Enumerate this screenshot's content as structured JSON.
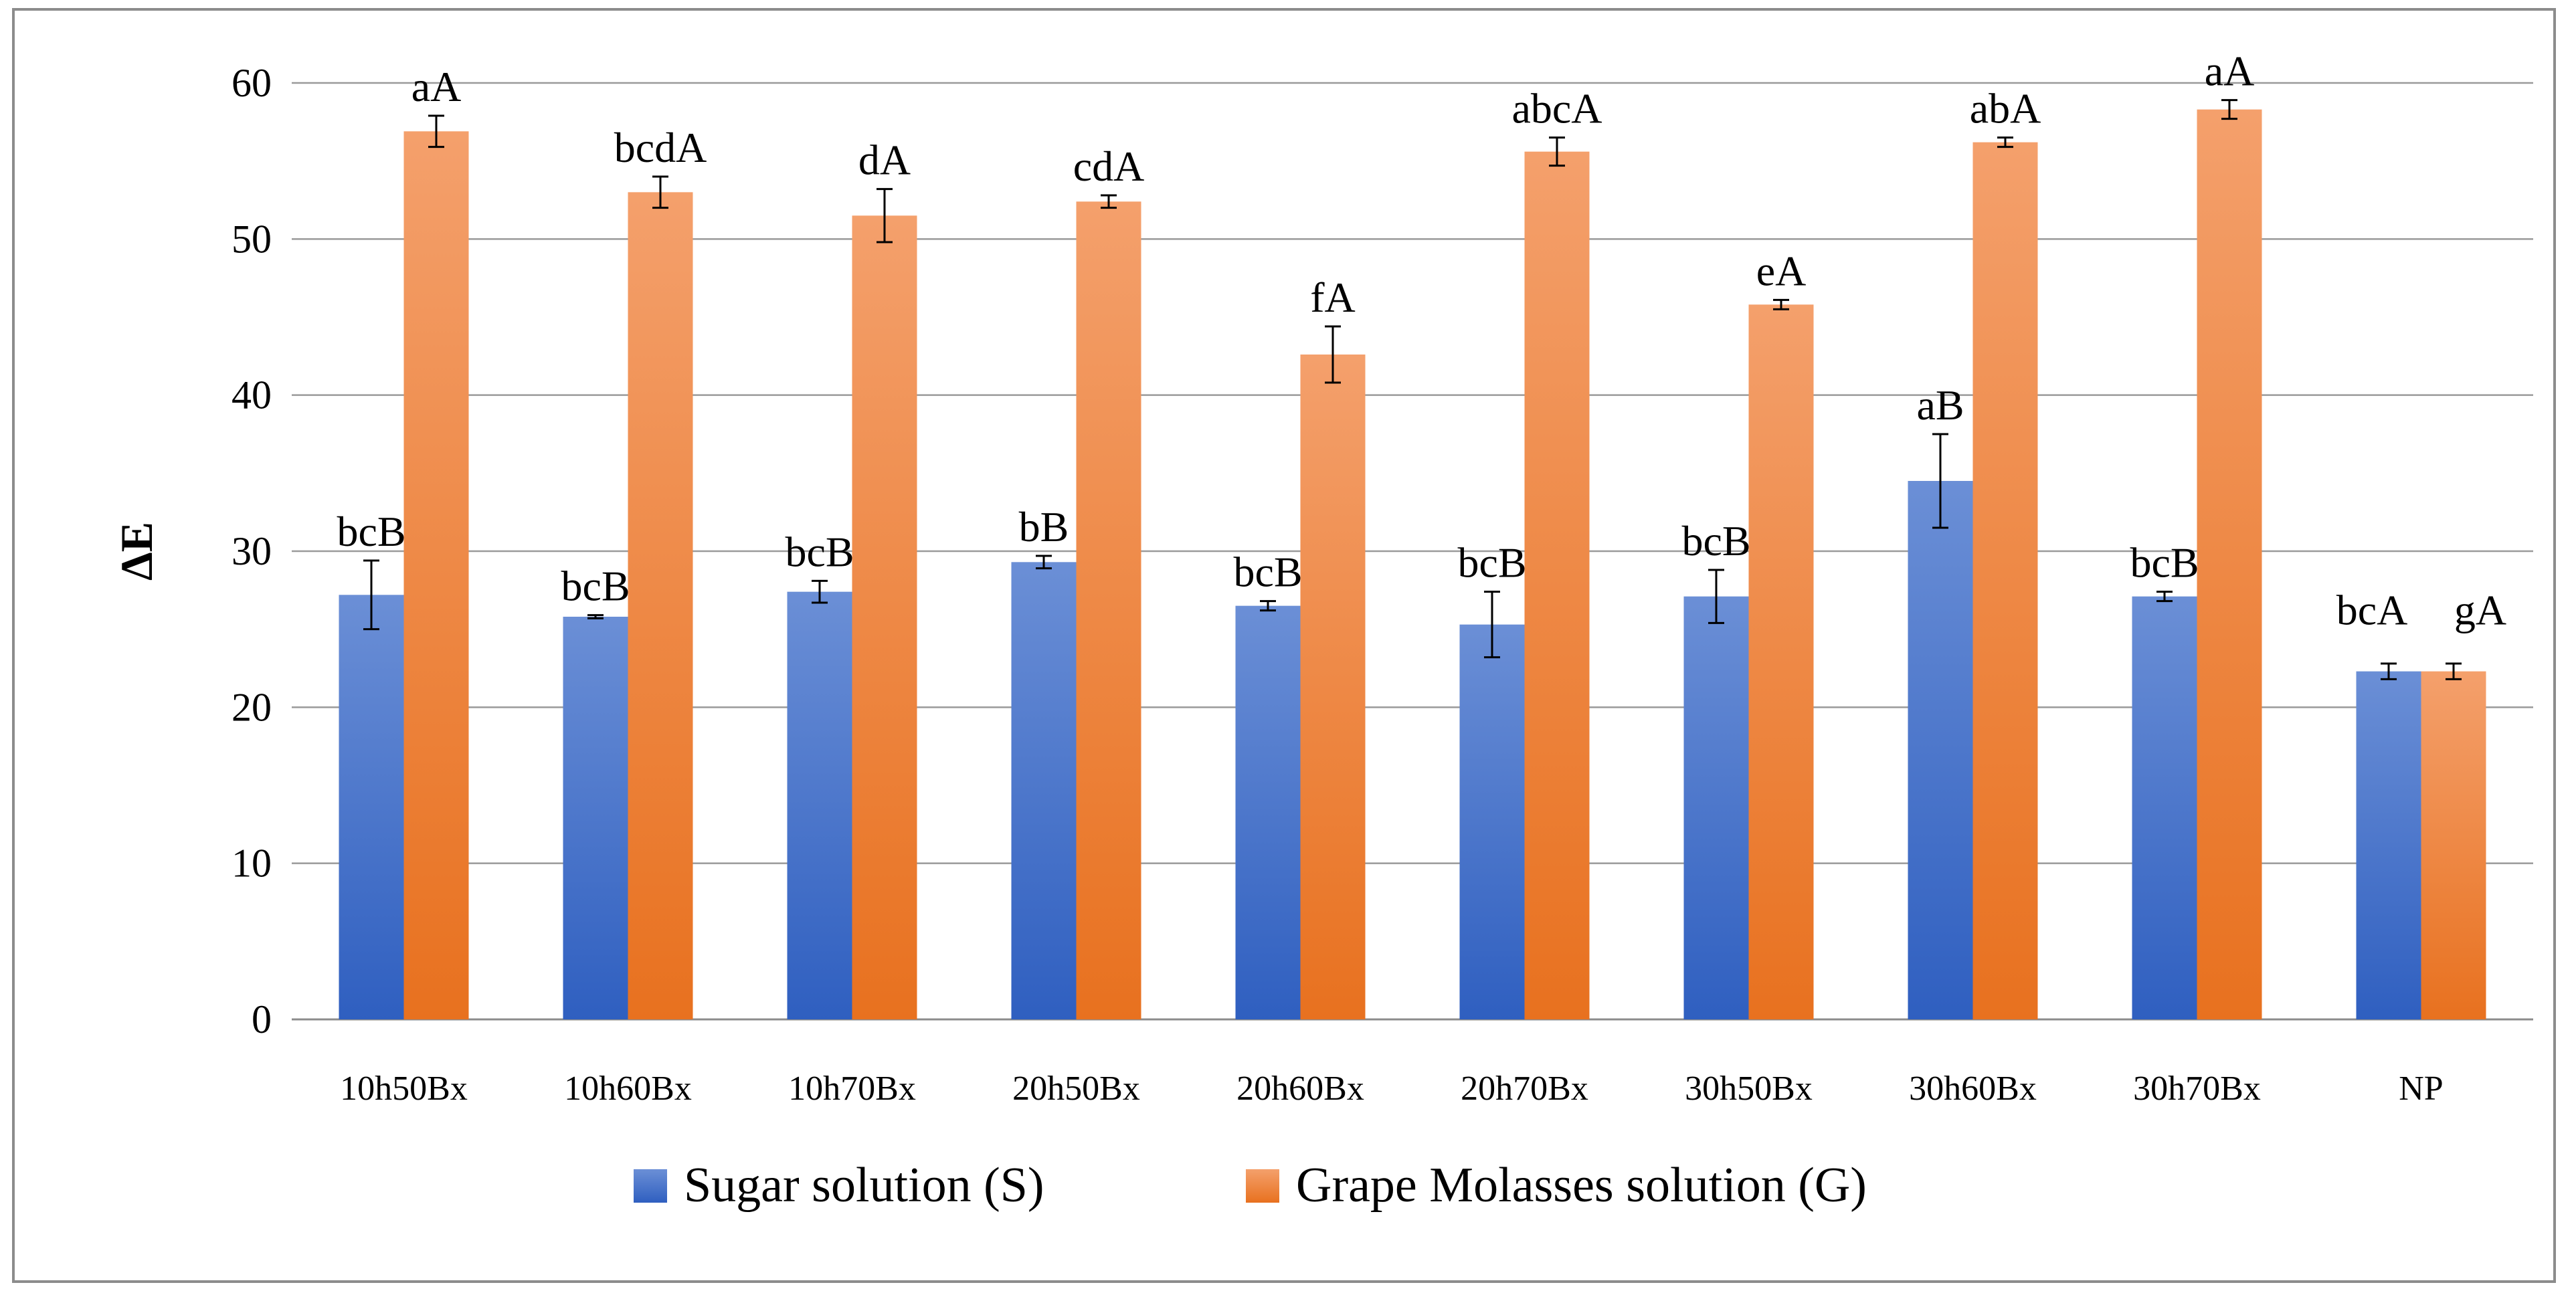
{
  "chart_data": {
    "type": "bar",
    "title": "",
    "xlabel": "",
    "ylabel": "ΔE",
    "ylim": [
      0,
      60
    ],
    "yticks": [
      0,
      10,
      20,
      30,
      40,
      50,
      60
    ],
    "grid": "horizontal",
    "legend_position": "bottom",
    "categories": [
      "10h50Bx",
      "10h60Bx",
      "10h70Bx",
      "20h50Bx",
      "20h60Bx",
      "20h70Bx",
      "30h50Bx",
      "30h60Bx",
      "30h70Bx",
      "NP"
    ],
    "series": [
      {
        "name": "Sugar solution (S)",
        "color": "#4472c4",
        "values": [
          27.2,
          25.8,
          27.4,
          29.3,
          26.5,
          25.3,
          27.1,
          34.5,
          27.1,
          22.3
        ],
        "errors": [
          2.2,
          0.1,
          0.7,
          0.4,
          0.3,
          2.1,
          1.7,
          3.0,
          0.3,
          0.5
        ],
        "labels": [
          "bcB",
          "bcB",
          "bcB",
          "bB",
          "bcB",
          "bcB",
          "bcB",
          "aB",
          "bcB",
          "bcA"
        ]
      },
      {
        "name": "Grape Molasses solution (G)",
        "color": "#ed7d31",
        "values": [
          56.9,
          53.0,
          51.5,
          52.4,
          42.6,
          55.6,
          45.8,
          56.2,
          58.3,
          22.3
        ],
        "errors": [
          1.0,
          1.0,
          1.7,
          0.4,
          1.8,
          0.9,
          0.3,
          0.3,
          0.6,
          0.5
        ],
        "labels": [
          "aA",
          "bcdA",
          "dA",
          "cdA",
          "fA",
          "abcA",
          "eA",
          "abA",
          "aA",
          "gA"
        ]
      }
    ]
  }
}
